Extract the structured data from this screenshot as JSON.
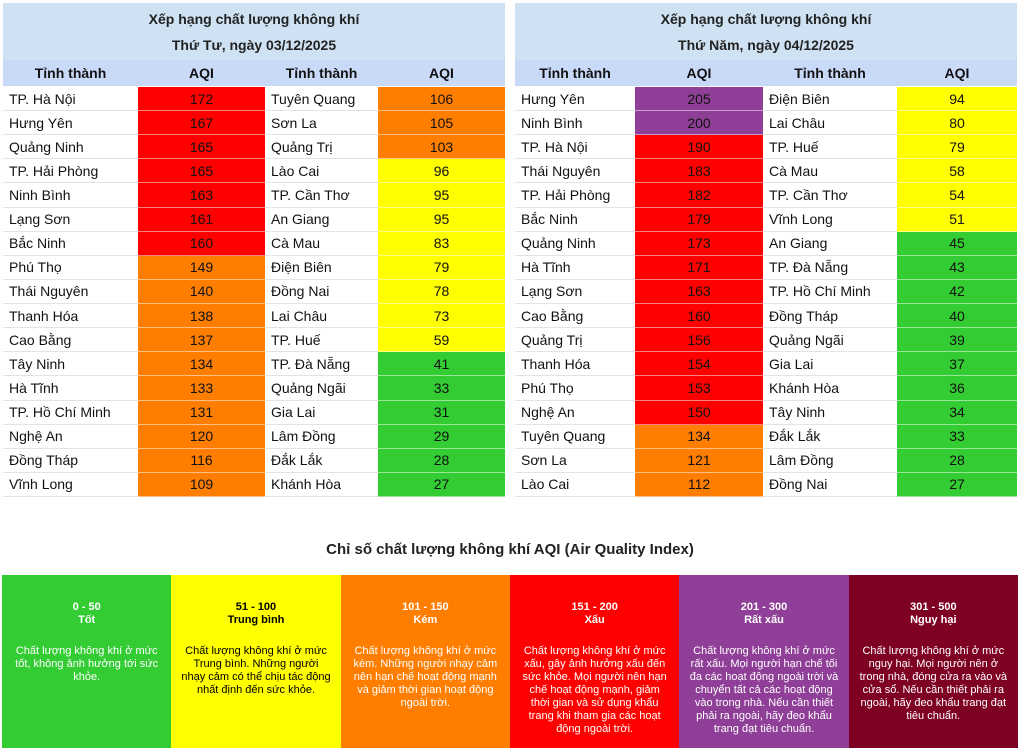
{
  "tables": [
    {
      "title": "Xếp hạng chất lượng không khí",
      "date": "Thứ Tư, ngày 03/12/2025",
      "headers": [
        "Tỉnh thành",
        "AQI",
        "Tỉnh thành",
        "AQI"
      ],
      "rows": [
        [
          "TP. Hà Nội",
          172,
          "Tuyên Quang",
          106
        ],
        [
          "Hưng Yên",
          167,
          "Sơn La",
          105
        ],
        [
          "Quảng Ninh",
          165,
          "Quảng Trị",
          103
        ],
        [
          "TP. Hải Phòng",
          165,
          "Lào Cai",
          96
        ],
        [
          "Ninh Bình",
          163,
          "TP. Cần Thơ",
          95
        ],
        [
          "Lạng Sơn",
          161,
          "An Giang",
          95
        ],
        [
          "Bắc Ninh",
          160,
          "Cà Mau",
          83
        ],
        [
          "Phú Thọ",
          149,
          "Điện Biên",
          79
        ],
        [
          "Thái Nguyên",
          140,
          "Đồng Nai",
          78
        ],
        [
          "Thanh Hóa",
          138,
          "Lai Châu",
          73
        ],
        [
          "Cao Bằng",
          137,
          "TP. Huế",
          59
        ],
        [
          "Tây Ninh",
          134,
          "TP. Đà Nẵng",
          41
        ],
        [
          "Hà Tĩnh",
          133,
          "Quảng Ngãi",
          33
        ],
        [
          "TP. Hồ Chí Minh",
          131,
          "Gia Lai",
          31
        ],
        [
          "Nghệ An",
          120,
          "Lâm Đồng",
          29
        ],
        [
          "Đồng Tháp",
          116,
          "Đắk Lắk",
          28
        ],
        [
          "Vĩnh Long",
          109,
          "Khánh Hòa",
          27
        ]
      ]
    },
    {
      "title": "Xếp hạng chất lượng không khí",
      "date": "Thứ Năm, ngày 04/12/2025",
      "headers": [
        "Tỉnh thành",
        "AQI",
        "Tỉnh thành",
        "AQI"
      ],
      "rows": [
        [
          "Hưng Yên",
          205,
          "Điện Biên",
          94
        ],
        [
          "Ninh Bình",
          200,
          "Lai Châu",
          80
        ],
        [
          "TP. Hà Nội",
          190,
          "TP. Huế",
          79
        ],
        [
          "Thái Nguyên",
          183,
          "Cà Mau",
          58
        ],
        [
          "TP. Hải Phòng",
          182,
          "TP. Cần Thơ",
          54
        ],
        [
          "Bắc Ninh",
          179,
          "Vĩnh Long",
          51
        ],
        [
          "Quảng Ninh",
          173,
          "An Giang",
          45
        ],
        [
          "Hà Tĩnh",
          171,
          "TP. Đà Nẵng",
          43
        ],
        [
          "Lạng Sơn",
          163,
          "TP. Hồ Chí Minh",
          42
        ],
        [
          "Cao Bằng",
          160,
          "Đồng Tháp",
          40
        ],
        [
          "Quảng Trị",
          156,
          "Quảng Ngãi",
          39
        ],
        [
          "Thanh Hóa",
          154,
          "Gia Lai",
          37
        ],
        [
          "Phú Thọ",
          153,
          "Khánh Hòa",
          36
        ],
        [
          "Nghệ An",
          150,
          "Tây Ninh",
          34
        ],
        [
          "Tuyên Quang",
          134,
          "Đắk Lắk",
          33
        ],
        [
          "Sơn La",
          121,
          "Lâm Đồng",
          28
        ],
        [
          "Lào Cai",
          112,
          "Đồng Nai",
          27
        ]
      ]
    }
  ],
  "legend": {
    "title": "Chỉ số chất lượng không khí AQI (Air Quality Index)",
    "levels": [
      {
        "range": "0 - 50",
        "label": "Tốt",
        "color": "#33cc33",
        "text_color": "#ffffff",
        "description": "Chất lượng không khí ở mức tốt, không ảnh hưởng tới sức khỏe."
      },
      {
        "range": "51 - 100",
        "label": "Trung bình",
        "color": "#ffff00",
        "text_color": "#000000",
        "description": "Chất lượng không khí ở mức Trung bình. Những người nhạy cảm có thể chịu tác động nhất định đến sức khỏe."
      },
      {
        "range": "101 - 150",
        "label": "Kém",
        "color": "#ff7e00",
        "text_color": "#ffffff",
        "description": "Chất lượng không khí ở mức kém. Những người nhạy cảm nên hạn chế hoạt động mạnh và giảm thời gian hoạt động ngoài trời."
      },
      {
        "range": "151 - 200",
        "label": "Xấu",
        "color": "#ff0000",
        "text_color": "#ffffff",
        "description": "Chất lượng không khí ở mức xấu, gây ảnh hưởng xấu đến sức khỏe. Mọi người nên hạn chế hoạt động mạnh, giảm thời gian và sử dụng khẩu trang khi tham gia các hoạt động ngoài trời."
      },
      {
        "range": "201 - 300",
        "label": "Rất xấu",
        "color": "#8f3f97",
        "text_color": "#ffffff",
        "description": "Chất lượng không khí ở mức rất xấu. Mọi người hạn chế tối đa các hoạt động ngoài trời và chuyển tất cả các hoạt động vào trong nhà. Nếu cần thiết phải ra ngoài, hãy đeo khẩu trang đạt tiêu chuẩn."
      },
      {
        "range": "301 - 500",
        "label": "Nguy hại",
        "color": "#7e0023",
        "text_color": "#ffffff",
        "description": "Chất lượng không khí ở mức nguy hại. Mọi người nên ở trong nhà, đóng cửa ra vào và cửa sổ. Nếu cần thiết phải ra ngoài, hãy đeo khẩu trang đạt tiêu chuẩn."
      }
    ]
  }
}
